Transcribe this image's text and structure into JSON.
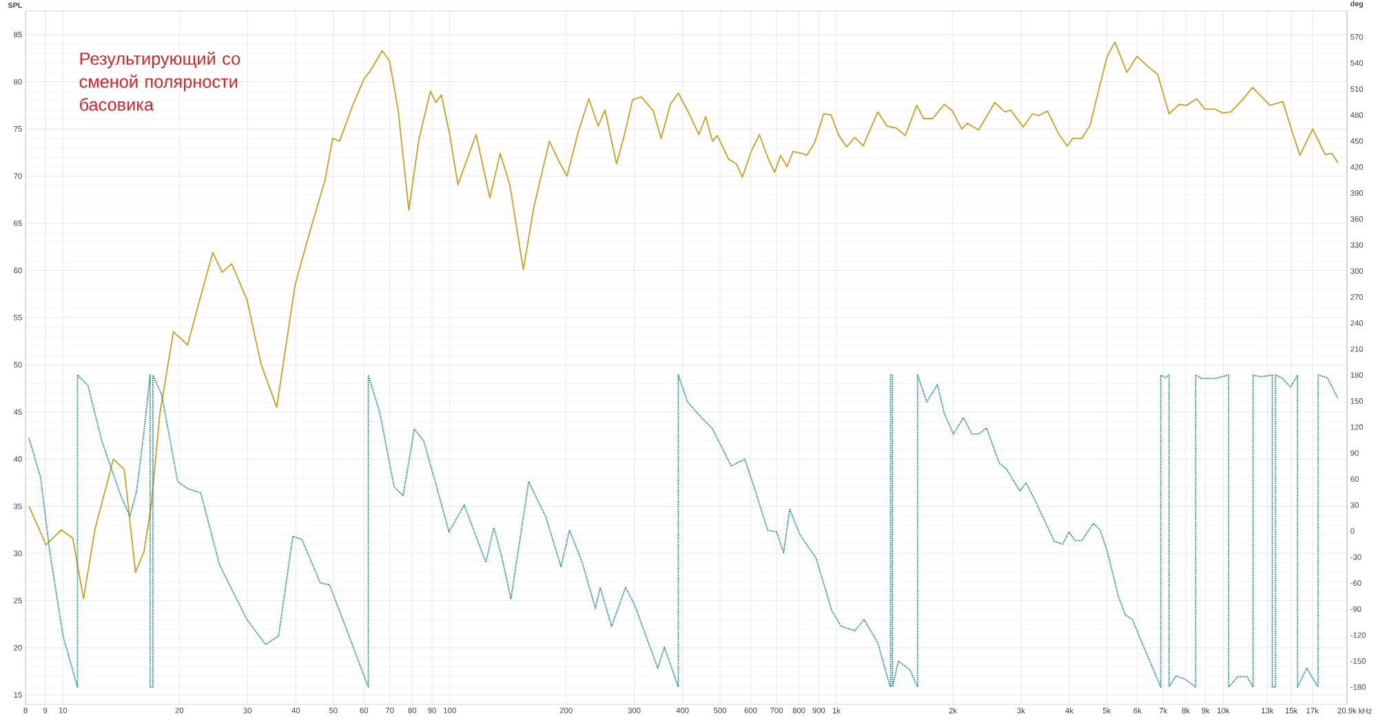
{
  "chart_data": {
    "type": "line",
    "ylabel": "SPL",
    "y2label": "deg",
    "annotations": [
      "Результирующий со сменой полярности басовика"
    ],
    "log": "x",
    "grid": true,
    "marker": "none",
    "xlim": [
      8,
      20900
    ],
    "xticks": [
      8,
      9,
      10,
      20,
      30,
      40,
      50,
      60,
      70,
      80,
      90,
      100,
      200,
      300,
      400,
      500,
      600,
      700,
      800,
      900,
      {
        "value": 1000,
        "label": "1k"
      },
      {
        "value": 2000,
        "label": "2k"
      },
      {
        "value": 3000,
        "label": "3k"
      },
      {
        "value": 4000,
        "label": "4k"
      },
      {
        "value": 5000,
        "label": "5k"
      },
      {
        "value": 6000,
        "label": "6k"
      },
      {
        "value": 7000,
        "label": "7k"
      },
      {
        "value": 8000,
        "label": "8k"
      },
      {
        "value": 9000,
        "label": "9k"
      },
      {
        "value": 10000,
        "label": "10k"
      },
      {
        "value": 13000,
        "label": "13k"
      },
      {
        "value": 15000,
        "label": "15k"
      },
      {
        "value": 17000,
        "label": "17k"
      },
      {
        "value": 20900,
        "label": "20.9k"
      }
    ],
    "xlabel": "kHz",
    "ylim": [
      14,
      87.5
    ],
    "yticks": [
      15,
      20,
      25,
      30,
      35,
      40,
      45,
      50,
      55,
      60,
      65,
      70,
      75,
      80,
      85
    ],
    "y2lim": [
      -200,
      600
    ],
    "y2ticks": [
      -180,
      -150,
      -120,
      -90,
      -60,
      -30,
      0,
      30,
      60,
      90,
      120,
      150,
      180,
      210,
      240,
      270,
      300,
      330,
      360,
      390,
      420,
      450,
      480,
      510,
      540,
      570
    ],
    "series": [
      {
        "color": "#c9a227",
        "line_style": "solid",
        "x": [
          8.17,
          9.04,
          9.9,
          10.6,
          11.3,
          12.1,
          13.5,
          14.4,
          15.4,
          16.2,
          16.9,
          17.8,
          19.3,
          21.0,
          22.4,
          24.4,
          25.8,
          27.3,
          29.9,
          32.5,
          35.7,
          39.8,
          43.2,
          47.6,
          49.8,
          51.9,
          56.0,
          60.0,
          62.4,
          66.9,
          69.9,
          73.6,
          78.4,
          83.3,
          89.2,
          92.1,
          95.1,
          100,
          105,
          117,
          127,
          135,
          143,
          155,
          165,
          181,
          192,
          201,
          215,
          229,
          242,
          252,
          270,
          283,
          297,
          313,
          336,
          352,
          372,
          390,
          415,
          441,
          459,
          478,
          492,
          526,
          551,
          571,
          603,
          632,
          664,
          692,
          717,
          745,
          772,
          815,
          838,
          877,
          927,
          968,
          1014,
          1062,
          1116,
          1172,
          1279,
          1351,
          1427,
          1507,
          1613,
          1680,
          1775,
          1899,
          1995,
          2108,
          2178,
          2332,
          2566,
          2725,
          2823,
          3040,
          3210,
          3326,
          3513,
          3762,
          3951,
          4082,
          4311,
          4529,
          4809,
          5010,
          5248,
          5635,
          5984,
          6357,
          6767,
          7245,
          7692,
          8037,
          8536,
          8968,
          9521,
          9973,
          10476,
          11216,
          11910,
          12580,
          13213,
          14262,
          14941,
          15785,
          17033,
          18338,
          19104,
          19801
        ],
        "values": [
          35.0,
          30.9,
          32.5,
          31.6,
          25.2,
          32.6,
          40.0,
          38.9,
          28.0,
          30.2,
          35.0,
          44.8,
          53.5,
          52.1,
          56.4,
          61.9,
          59.8,
          60.7,
          56.9,
          50.1,
          45.5,
          58.4,
          63.7,
          69.6,
          74.0,
          73.7,
          77.4,
          80.3,
          81.2,
          83.3,
          82.2,
          76.9,
          66.4,
          74.0,
          79.0,
          77.8,
          78.6,
          74.4,
          69.1,
          74.4,
          67.7,
          72.4,
          69.1,
          60.1,
          66.7,
          73.7,
          71.5,
          70.0,
          74.7,
          78.2,
          75.3,
          77.0,
          71.3,
          74.4,
          78.1,
          78.4,
          76.9,
          74.0,
          77.6,
          78.8,
          76.7,
          74.4,
          76.3,
          73.7,
          74.3,
          71.8,
          71.3,
          69.9,
          72.7,
          74.4,
          72.0,
          70.4,
          72.2,
          71.0,
          72.6,
          72.4,
          72.2,
          73.5,
          76.6,
          76.5,
          74.3,
          73.1,
          74.1,
          73.2,
          76.8,
          75.3,
          75.1,
          74.3,
          77.5,
          76.1,
          76.1,
          77.6,
          76.9,
          75.0,
          75.6,
          74.9,
          77.8,
          76.8,
          77.0,
          75.2,
          76.6,
          76.4,
          76.9,
          74.4,
          73.2,
          74.0,
          74.0,
          75.4,
          79.8,
          82.7,
          84.2,
          81.0,
          82.7,
          81.7,
          80.8,
          76.6,
          77.6,
          77.5,
          78.2,
          77.1,
          77.1,
          76.7,
          76.8,
          78.1,
          79.4,
          78.4,
          77.5,
          77.9,
          75.2,
          72.2,
          75.0,
          72.3,
          72.4,
          71.4
        ]
      },
      {
        "color": "#1f8a80",
        "axis": "y2",
        "line_style": "dotted",
        "x": [
          8.17,
          8.75,
          9.24,
          10.0,
          10.9,
          10.9,
          11.6,
          12.6,
          14.1,
          14.9,
          15.5,
          16.2,
          16.8,
          16.8,
          17.08,
          17.08,
          18.0,
          19.8,
          21.0,
          22.7,
          25.4,
          26.8,
          29.9,
          33.4,
          36.1,
          39.3,
          41.5,
          46.3,
          48.9,
          53.2,
          61.6,
          61.6,
          66.0,
          71.8,
          75.8,
          81.0,
          85.6,
          91.7,
          99.6,
          109,
          124,
          130,
          136,
          144,
          160,
          177,
          194,
          204,
          220,
          238,
          245,
          262,
          285,
          301,
          345,
          359,
          390,
          390,
          412,
          447,
          478,
          534,
          579,
          612,
          664,
          701,
          730,
          757,
          804,
          885,
          973,
          1028,
          1116,
          1178,
          1279,
          1369,
          1380,
          1380,
          1396,
          1396,
          1446,
          1548,
          1621,
          1621,
          1712,
          1824,
          1899,
          2006,
          2131,
          2238,
          2332,
          2443,
          2638,
          2747,
          2983,
          3090,
          3281,
          3660,
          3844,
          3994,
          4139,
          4311,
          4616,
          4809,
          5010,
          5364,
          5589,
          5824,
          6233,
          6897,
          6897,
          7087,
          7244,
          7244,
          7546,
          7973,
          8488,
          8488,
          8770,
          9521,
          10332,
          10332,
          10912,
          11527,
          11945,
          11945,
          12513,
          13397,
          13397,
          13656,
          13656,
          14149,
          14938,
          15566,
          15566,
          16440,
          17600,
          17600,
          18590,
          19801
        ],
        "values": [
          107,
          62,
          -23,
          -121,
          -180,
          180,
          168,
          104,
          41,
          17,
          46,
          115,
          180,
          -180,
          -180,
          180,
          157,
          57,
          49,
          44,
          -39,
          -60,
          -102,
          -131,
          -121,
          -6,
          -10,
          -60,
          -62,
          -105,
          -180,
          180,
          136,
          51,
          41,
          118,
          104,
          57,
          -1,
          30,
          -36,
          4,
          -28,
          -78,
          57,
          17,
          -41,
          1,
          -36,
          -89,
          -65,
          -110,
          -65,
          -86,
          -158,
          -134,
          -180,
          180,
          149,
          131,
          118,
          75,
          83,
          51,
          1,
          -1,
          -25,
          25,
          -4,
          -31,
          -92,
          -110,
          -115,
          -102,
          -129,
          -176,
          -180,
          180,
          180,
          -180,
          -150,
          -160,
          -180,
          180,
          149,
          169,
          136,
          112,
          131,
          112,
          112,
          119,
          78,
          72,
          46,
          56,
          33,
          -12,
          -15,
          -1,
          -11,
          -11,
          9,
          1,
          -23,
          -76,
          -97,
          -102,
          -134,
          -180,
          180,
          177,
          180,
          -180,
          -167,
          -171,
          -180,
          180,
          176,
          176,
          180,
          -180,
          -168,
          -168,
          -180,
          180,
          178,
          180,
          -180,
          -180,
          180,
          177,
          166,
          180,
          -180,
          -158,
          -180,
          180,
          177,
          153
        ]
      }
    ]
  }
}
